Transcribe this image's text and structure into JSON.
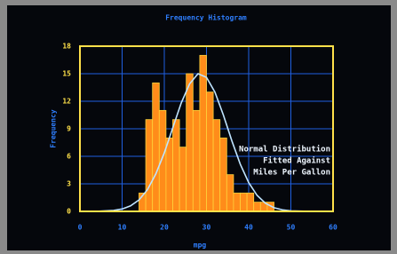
{
  "chart_data": {
    "type": "histogram",
    "title": "Frequency Histogram",
    "x_label": "mpg",
    "y_label": "Frequency",
    "annotation": [
      "Normal Distribution",
      "Fitted Against",
      "Miles Per Gallon"
    ],
    "bins": [
      14,
      15.6,
      17.2,
      18.8,
      20.4,
      22,
      23.6,
      25.2,
      26.8,
      28.4,
      30,
      31.6,
      33.2,
      34.8,
      36.4,
      38,
      39.6,
      41.2,
      42.8,
      44.4,
      46
    ],
    "values": [
      2,
      10,
      14,
      11,
      8,
      10,
      7,
      15,
      11,
      17,
      13,
      10,
      8,
      4,
      2,
      2,
      2,
      1,
      1,
      1
    ],
    "color": "#ff8c1a",
    "curve": {
      "color": "#bfe4ff",
      "x": [
        0,
        4,
        8,
        10,
        12,
        14,
        16,
        18,
        20,
        22,
        24,
        26,
        28,
        30,
        32,
        34,
        36,
        38,
        40,
        42,
        44,
        46,
        48,
        50,
        54,
        60
      ],
      "values": [
        0,
        0.01,
        0.1,
        0.26,
        0.6,
        1.24,
        2.36,
        4.09,
        6.38,
        9.1,
        11.8,
        13.9,
        15,
        14.6,
        13,
        10.5,
        7.7,
        5.15,
        3.14,
        1.74,
        0.88,
        0.4,
        0.17,
        0.06,
        0.01,
        0
      ]
    },
    "xlim": [
      0,
      60
    ],
    "xticks": [
      0,
      10,
      20,
      30,
      40,
      50,
      60
    ],
    "ylim": [
      0,
      18
    ],
    "yticks": [
      0,
      3,
      6,
      9,
      12,
      15,
      18
    ],
    "grid": true
  }
}
